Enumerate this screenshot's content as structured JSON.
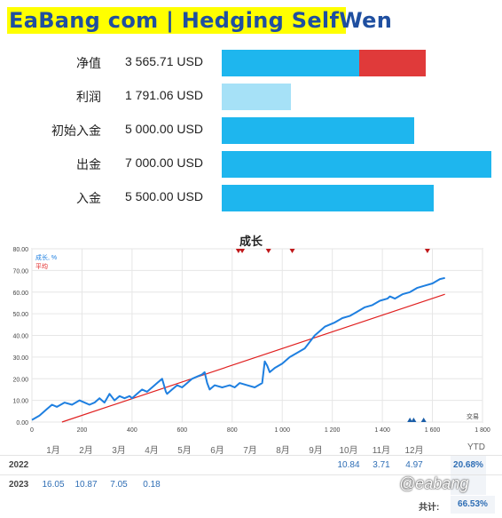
{
  "header": {
    "title": "EaBang com | Hedging SelfWen"
  },
  "stats": [
    {
      "label": "净值",
      "value": "3 565.71 USD"
    },
    {
      "label": "利润",
      "value": "1 791.06 USD"
    },
    {
      "label": "初始入金",
      "value": "5 000.00 USD"
    },
    {
      "label": "出金",
      "value": "7 000.00 USD"
    },
    {
      "label": "入金",
      "value": "5 500.00 USD"
    }
  ],
  "colors": {
    "bar_blue": "#1eb6ee",
    "bar_light": "#a6e1f7",
    "bar_red": "#e03a3a",
    "growth_line": "#1e7fe0",
    "avg_line": "#e02020",
    "marker_red": "#c0181a",
    "marker_blue": "#1a5ea8"
  },
  "chart_data": {
    "type": "line",
    "title": "成长",
    "xlabel": "交易",
    "ylabel": "",
    "xlim": [
      0,
      1800
    ],
    "ylim": [
      0,
      80
    ],
    "x_ticks": [
      "0",
      "200",
      "400",
      "600",
      "800",
      "1 000",
      "1 200",
      "1 400",
      "1 600",
      "1 800"
    ],
    "y_ticks": [
      "0.00",
      "10.00",
      "20.00",
      "30.00",
      "40.00",
      "50.00",
      "60.00",
      "70.00",
      "80.00"
    ],
    "legend": {
      "placement": "top-left",
      "entries": [
        "成长, %",
        "平均"
      ]
    },
    "grid": true,
    "series": [
      {
        "name": "成长, %",
        "x": [
          0,
          30,
          60,
          80,
          100,
          130,
          160,
          190,
          210,
          230,
          250,
          270,
          290,
          310,
          330,
          350,
          370,
          390,
          400,
          420,
          440,
          460,
          480,
          500,
          520,
          535,
          540,
          560,
          580,
          600,
          620,
          640,
          660,
          680,
          690,
          700,
          710,
          730,
          760,
          790,
          810,
          830,
          860,
          890,
          920,
          930,
          940,
          950,
          970,
          1000,
          1030,
          1060,
          1090,
          1110,
          1130,
          1150,
          1170,
          1190,
          1210,
          1240,
          1270,
          1300,
          1330,
          1360,
          1390,
          1420,
          1430,
          1450,
          1480,
          1510,
          1540,
          1570,
          1600,
          1630,
          1650
        ],
        "y": [
          1,
          3,
          6,
          8,
          7,
          9,
          8,
          10,
          9,
          8,
          9,
          11,
          9,
          13,
          10,
          12,
          11,
          12,
          11,
          13,
          15,
          14,
          16,
          18,
          20,
          14,
          13,
          15,
          17,
          16,
          18,
          20,
          21,
          22,
          23,
          18,
          15,
          17,
          16,
          17,
          16,
          18,
          17,
          16,
          18,
          28,
          26,
          23,
          25,
          27,
          30,
          32,
          34,
          37,
          40,
          42,
          44,
          45,
          46,
          48,
          49,
          51,
          53,
          54,
          56,
          57,
          58,
          57,
          59,
          60,
          62,
          63,
          64,
          66,
          66.53
        ]
      },
      {
        "name": "平均",
        "x": [
          120,
          1650
        ],
        "y": [
          0,
          59
        ]
      }
    ],
    "markers_top": [
      825,
      840,
      945,
      1040,
      1580
    ],
    "markers_bottom": [
      1510,
      1525,
      1565
    ],
    "performance_table": {
      "months": [
        "1月",
        "2月",
        "3月",
        "4月",
        "5月",
        "6月",
        "7月",
        "8月",
        "9月",
        "10月",
        "11月",
        "12月"
      ],
      "ytd_label": "YTD",
      "rows": [
        {
          "year": "2022",
          "values": [
            "",
            "",
            "",
            "",
            "",
            "",
            "",
            "",
            "",
            "10.84",
            "3.71",
            "4.97"
          ],
          "ytd": "20.68%"
        },
        {
          "year": "2023",
          "values": [
            "16.05",
            "10.87",
            "7.05",
            "0.18",
            "",
            "",
            "",
            "",
            "",
            "",
            "",
            ""
          ],
          "ytd": ""
        }
      ],
      "total_label": "共计:",
      "total": "66.53%"
    }
  },
  "watermark": "@eabang"
}
